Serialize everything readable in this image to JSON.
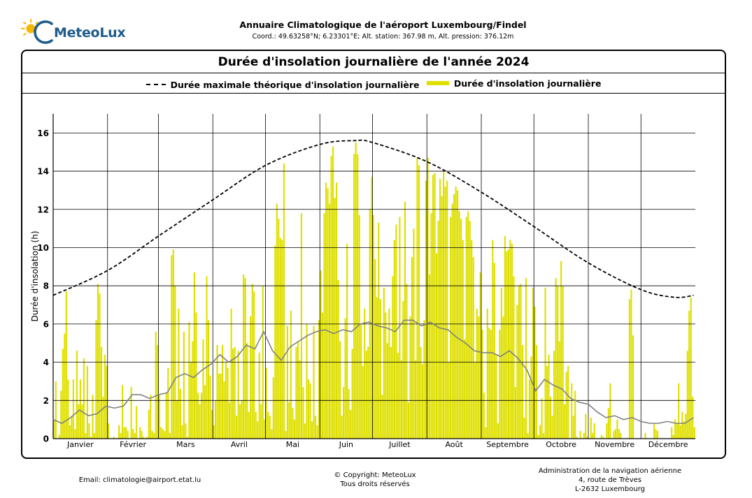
{
  "header": {
    "brand": "MeteoLux",
    "title": "Annuaire Climatologique de l'aéroport Luxembourg/Findel",
    "coordinates": "Coord.: 49.63258°N; 6.23301°E; Alt. station: 367.98 m, Alt. pression: 376.12m"
  },
  "chart_data": {
    "type": "bar",
    "title": "Durée d'insolation journalière de l'année 2024",
    "ylabel": "Durée d'insolation (h)",
    "xlabel": "",
    "ylim": [
      0,
      17
    ],
    "xlim": [
      1,
      366
    ],
    "grid": true,
    "legend_position": "top",
    "y_ticks": [
      "0",
      "2",
      "4",
      "6",
      "8",
      "10",
      "12",
      "14",
      "16"
    ],
    "month_labels": [
      "Janvier",
      "Février",
      "Mars",
      "Avril",
      "Mai",
      "Juin",
      "Juillet",
      "Août",
      "Septembre",
      "Octobre",
      "Novembre",
      "Décembre"
    ],
    "month_start_days": [
      1,
      32,
      61,
      92,
      122,
      153,
      183,
      214,
      245,
      275,
      306,
      336
    ],
    "colors": {
      "bars": "#dfe000",
      "max_line": "#000000",
      "average": "#808080"
    },
    "series": [
      {
        "name": "Durée maximale théorique d'insolation journalière",
        "type": "line",
        "style": "dashed",
        "formula_note": "",
        "x": [
          1,
          32,
          61,
          92,
          122,
          153,
          173,
          183,
          214,
          245,
          275,
          306,
          336,
          355,
          366
        ],
        "values": [
          7.5,
          8.8,
          10.6,
          12.5,
          14.3,
          15.4,
          15.6,
          15.5,
          14.5,
          12.9,
          11.1,
          9.2,
          7.8,
          7.4,
          7.5
        ]
      },
      {
        "name": "Durée d'insolation journalière",
        "type": "bar",
        "values": [
          1.0,
          3.0,
          0.0,
          0.2,
          2.5,
          4.7,
          5.5,
          7.7,
          3.1,
          0.7,
          1.2,
          3.1,
          0.5,
          4.6,
          1.8,
          3.1,
          1.8,
          4.2,
          0.3,
          3.8,
          0.8,
          0.1,
          2.3,
          0.3,
          6.2,
          8.1,
          7.6,
          4.8,
          2.2,
          4.4,
          3.8,
          0.8,
          0.0,
          0.0,
          0.1,
          0.0,
          0.0,
          0.7,
          0.3,
          2.8,
          0.6,
          0.6,
          0.4,
          0.0,
          2.7,
          0.5,
          0.3,
          1.7,
          0.0,
          0.6,
          0.4,
          0.1,
          0.0,
          0.1,
          1.5,
          2.3,
          0.4,
          0.3,
          5.6,
          4.9,
          2.3,
          0.6,
          0.5,
          0.4,
          2.4,
          3.7,
          0.3,
          9.6,
          9.9,
          8.0,
          2.0,
          6.8,
          2.6,
          0.7,
          5.6,
          0.8,
          0.1,
          6.1,
          4.0,
          5.1,
          8.7,
          6.6,
          2.4,
          1.8,
          2.4,
          5.2,
          2.8,
          8.5,
          6.2,
          3.3,
          1.5,
          0.7,
          2.0,
          4.9,
          3.4,
          3.4,
          4.9,
          3.0,
          4.0,
          3.7,
          1.9,
          6.8,
          4.7,
          4.8,
          1.2,
          4.6,
          1.8,
          2.0,
          8.6,
          8.4,
          5.0,
          1.4,
          6.4,
          8.1,
          7.7,
          1.4,
          0.9,
          4.5,
          1.8,
          8.0,
          1.0,
          3.7,
          1.4,
          1.2,
          0.5,
          3.2,
          10.1,
          12.3,
          11.5,
          10.5,
          10.4,
          14.4,
          0.4,
          5.9,
          1.9,
          6.7,
          1.6,
          1.0,
          4.8,
          5.1,
          4.1,
          11.8,
          2.7,
          0.8,
          6.0,
          3.1,
          2.9,
          0.9,
          5.9,
          1.2,
          0.7,
          6.2,
          8.8,
          6.6,
          11.8,
          13.4,
          13.1,
          12.3,
          14.8,
          15.3,
          12.6,
          13.4,
          8.3,
          5.1,
          1.2,
          2.7,
          6.3,
          10.2,
          2.6,
          1.5,
          4.7,
          14.9,
          15.5,
          14.9,
          11.7,
          6.0,
          3.8,
          6.8,
          4.6,
          4.8,
          12.0,
          13.7,
          11.7,
          9.4,
          7.4,
          11.3,
          7.3,
          2.3,
          7.9,
          6.6,
          5.0,
          6.8,
          4.8,
          8.5,
          10.4,
          11.2,
          4.5,
          11.6,
          4.1,
          7.2,
          12.4,
          8.1,
          1.9,
          6.4,
          9.5,
          11.0,
          4.1,
          14.7,
          14.3,
          4.8,
          3.9,
          6.2,
          13.5,
          14.7,
          8.6,
          11.8,
          13.8,
          13.9,
          9.7,
          11.4,
          13.6,
          12.7,
          14.0,
          13.2,
          13.5,
          4.0,
          11.6,
          12.3,
          12.8,
          13.2,
          13.0,
          11.9,
          11.5,
          10.4,
          5.2,
          11.6,
          11.9,
          11.4,
          10.4,
          9.5,
          4.0,
          6.8,
          6.4,
          8.7,
          5.7,
          2.4,
          0.6,
          6.8,
          5.8,
          5.7,
          10.4,
          9.2,
          4.4,
          0.8,
          5.7,
          7.9,
          6.4,
          10.6,
          9.8,
          9.9,
          10.4,
          10.2,
          8.5,
          2.7,
          7.0,
          8.0,
          8.1,
          4.9,
          1.1,
          8.4,
          0.3,
          3.1,
          4.3,
          7.9,
          6.9,
          4.9,
          0.2,
          0.7,
          2.1,
          0.3,
          7.9,
          3.8,
          4.4,
          2.2,
          1.2,
          4.6,
          8.4,
          8.0,
          5.1,
          9.3,
          8.0,
          1.8,
          3.5,
          3.8,
          0.0,
          2.9,
          1.2,
          2.5,
          0.1,
          0.0,
          0.4,
          0.0,
          0.3,
          1.3,
          0.1,
          0.0,
          1.1,
          0.3,
          0.8,
          0.0,
          0.0,
          0.0,
          0.2,
          0.1,
          0.0,
          0.8,
          1.6,
          2.9,
          0.0,
          0.4,
          0.5,
          1.0,
          0.5,
          0.3,
          0.0,
          0.0,
          0.0,
          0.0,
          7.3,
          7.8,
          5.4,
          0.0,
          0.0,
          0.0,
          0.0,
          0.0,
          0.0,
          0.3,
          0.0,
          0.0,
          0.0,
          0.0,
          0.8,
          0.5,
          0.4,
          0.0,
          0.0,
          0.0,
          0.0,
          0.0,
          0.0,
          0.0,
          0.6,
          0.2,
          1.0,
          0.8,
          2.9,
          0.7,
          1.4,
          0.9,
          1.3,
          4.6,
          6.7,
          7.4,
          2.2,
          0.6
        ]
      },
      {
        "name": "",
        "type": "line",
        "style": "solid",
        "x": [
          1,
          6,
          11,
          16,
          21,
          26,
          31,
          36,
          41,
          46,
          51,
          56,
          61,
          66,
          71,
          76,
          81,
          86,
          91,
          96,
          101,
          106,
          111,
          116,
          121,
          126,
          131,
          136,
          141,
          146,
          151,
          156,
          161,
          166,
          171,
          176,
          181,
          186,
          191,
          196,
          201,
          206,
          211,
          216,
          221,
          226,
          231,
          236,
          241,
          246,
          251,
          256,
          261,
          266,
          271,
          276,
          281,
          286,
          291,
          296,
          301,
          306,
          311,
          316,
          321,
          326,
          331,
          336,
          341,
          346,
          351,
          356,
          361,
          366
        ],
        "values": [
          1.0,
          0.8,
          1.1,
          1.5,
          1.2,
          1.3,
          1.7,
          1.6,
          1.7,
          2.3,
          2.3,
          2.1,
          2.3,
          2.4,
          3.2,
          3.4,
          3.2,
          3.6,
          3.9,
          4.4,
          4.0,
          4.3,
          4.9,
          4.7,
          5.6,
          4.6,
          4.1,
          4.8,
          5.1,
          5.4,
          5.6,
          5.7,
          5.5,
          5.7,
          5.6,
          6.0,
          6.1,
          5.9,
          5.8,
          5.6,
          6.2,
          6.2,
          5.9,
          6.1,
          5.8,
          5.7,
          5.3,
          5.0,
          4.6,
          4.5,
          4.5,
          4.3,
          4.6,
          4.2,
          3.6,
          2.5,
          3.1,
          2.8,
          2.6,
          2.1,
          1.9,
          1.8,
          1.4,
          1.1,
          1.2,
          1.0,
          1.1,
          0.9,
          0.8,
          0.8,
          0.9,
          0.8,
          0.8,
          1.1
        ]
      }
    ]
  },
  "footer": {
    "email": "Email: climatologie@airport.etat.lu",
    "copyright": "© Copyright: MeteoLux",
    "rights": "Tous droits réservés",
    "admin_line1": "Administration de la navigation aérienne",
    "admin_line2": "4, route de Trèves",
    "admin_line3": "L-2632 Luxembourg"
  }
}
